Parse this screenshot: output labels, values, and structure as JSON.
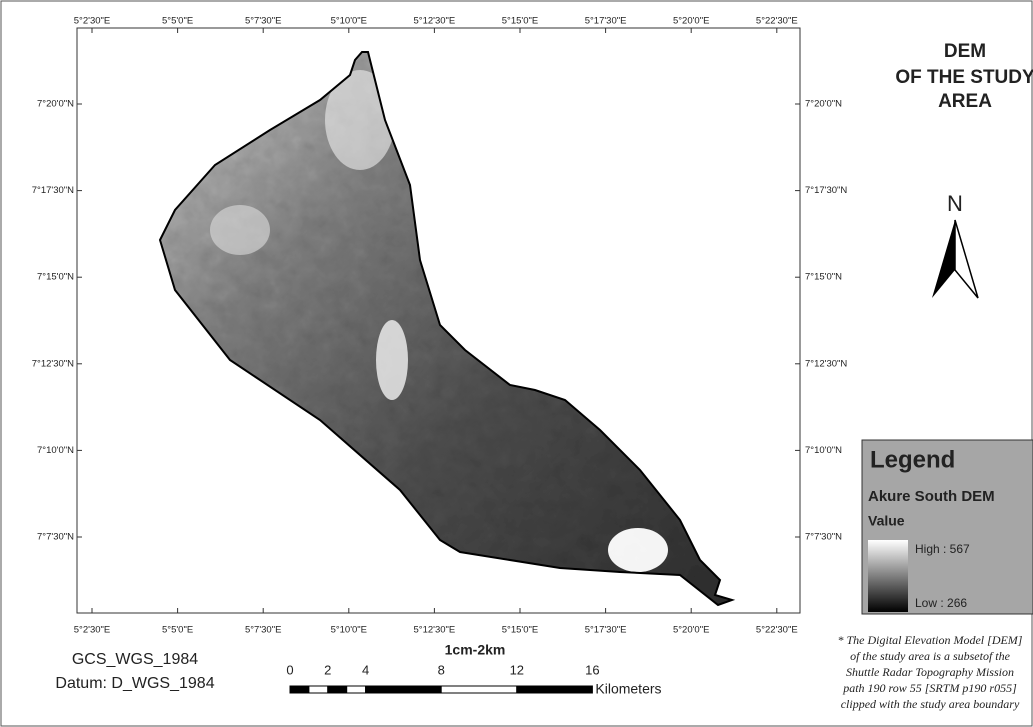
{
  "map": {
    "title": [
      "DEM",
      "OF THE STUDY",
      "AREA"
    ],
    "longitude_labels": [
      "5°2'30\"E",
      "5°5'0\"E",
      "5°7'30\"E",
      "5°10'0\"E",
      "5°12'30\"E",
      "5°15'0\"E",
      "5°17'30\"E",
      "5°20'0\"E",
      "5°22'30\"E"
    ],
    "latitude_labels": [
      "7°20'0\"N",
      "7°17'30\"N",
      "7°15'0\"N",
      "7°12'30\"N",
      "7°10'0\"N",
      "7°7'30\"N"
    ],
    "north_arrow": "N",
    "legend": {
      "title": "Legend",
      "layer": "Akure South DEM",
      "field": "Value",
      "high": "High : 567",
      "low": "Low : 266"
    },
    "scale_bar": {
      "title": "1cm-2km",
      "ticks": [
        0,
        2,
        4,
        8,
        12,
        16
      ],
      "unit": "Kilometers"
    },
    "coordinate_system": [
      "GCS_WGS_1984",
      "Datum: D_WGS_1984"
    ],
    "note": [
      "* The Digital Elevation Model [DEM]",
      "of the study area is a subsetof the",
      "Shuttle Radar Topography Mission",
      "path 190 row 55 [SRTM p190 r055]",
      "clipped with the study area boundary"
    ]
  }
}
